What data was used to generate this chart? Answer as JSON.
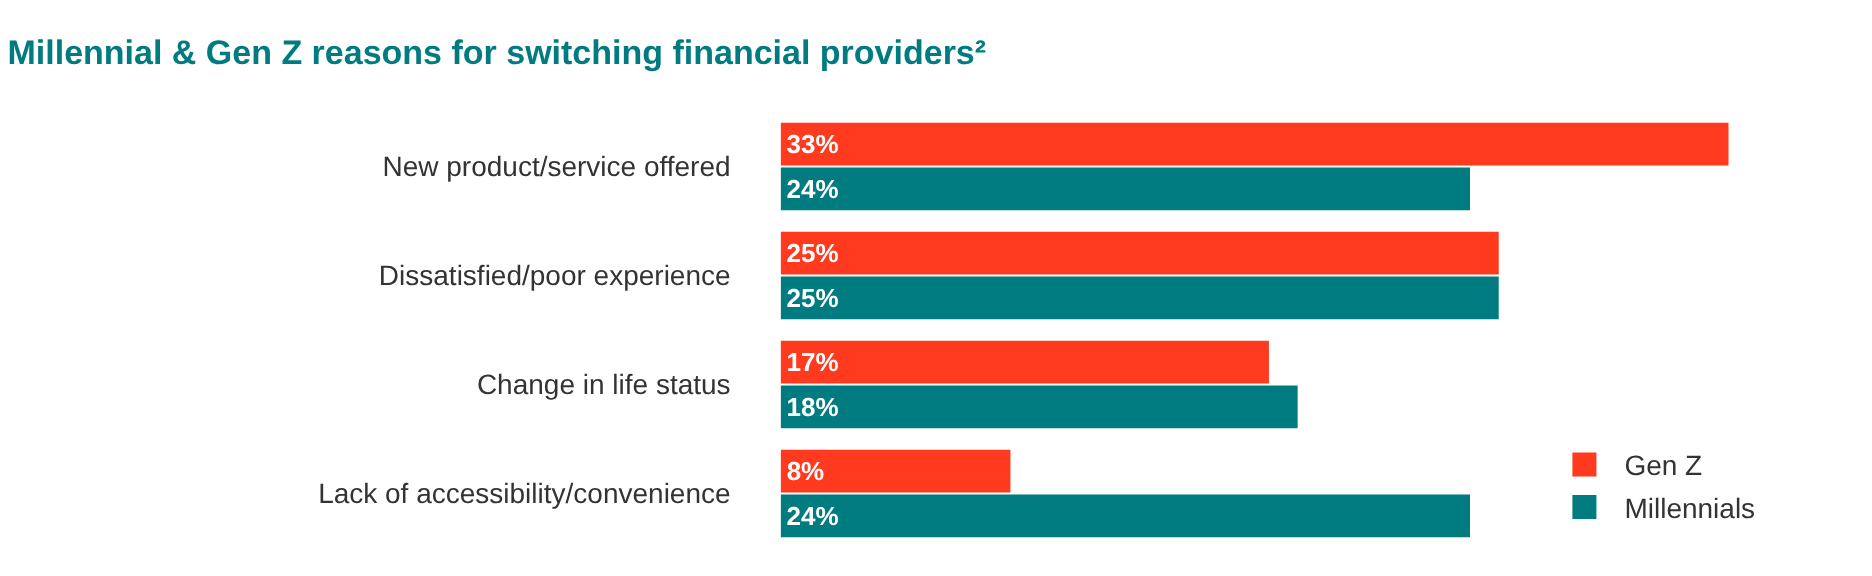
{
  "chart_data": {
    "type": "bar",
    "orientation": "horizontal",
    "title": "Millennial & Gen Z reasons for switching financial providers²",
    "categories": [
      "New product/service offered",
      "Dissatisfied/poor experience",
      "Change in life status",
      "Lack of accessibility/convenience"
    ],
    "series": [
      {
        "name": "Gen Z",
        "color": "#ff3a1e",
        "values": [
          33,
          25,
          17,
          8
        ],
        "value_labels": [
          "33%",
          "25%",
          "17%",
          "8%"
        ]
      },
      {
        "name": "Millennials",
        "color": "#007b80",
        "values": [
          24,
          25,
          18,
          24
        ],
        "value_labels": [
          "24%",
          "25%",
          "18%",
          "24%"
        ]
      }
    ],
    "legend": "bottom right",
    "tick_labels": "y"
  }
}
